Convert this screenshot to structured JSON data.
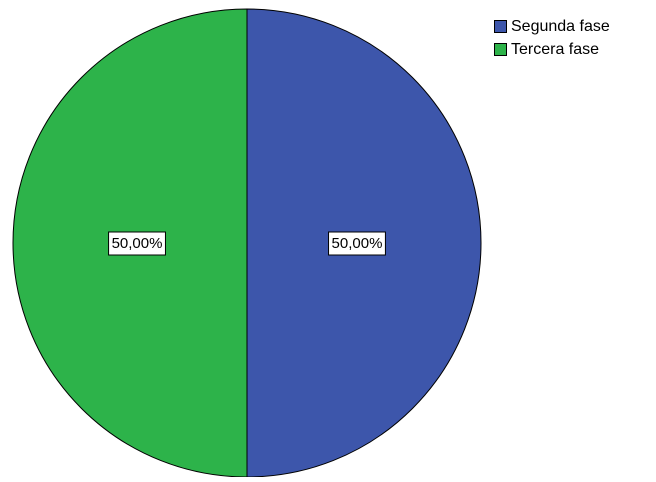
{
  "chart_data": {
    "type": "pie",
    "title": "",
    "slices": [
      {
        "label": "Segunda fase",
        "value": 50.0,
        "display": "50,00%",
        "color": "#3d56ab"
      },
      {
        "label": "Tercera fase",
        "value": 50.0,
        "display": "50,00%",
        "color": "#2db34a"
      }
    ],
    "legend_position": "top-right",
    "start_angle_deg": 0,
    "direction": "clockwise"
  }
}
